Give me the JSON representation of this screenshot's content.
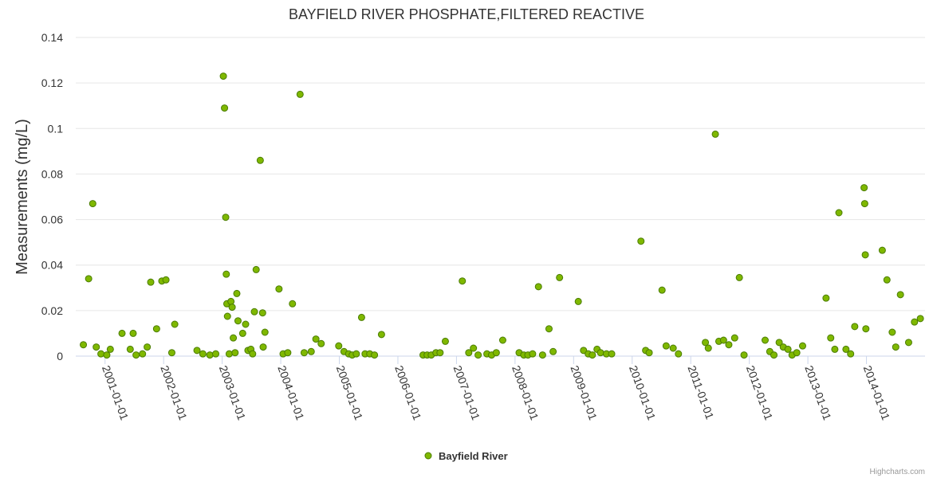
{
  "chart_data": {
    "type": "scatter",
    "title": "BAYFIELD RIVER PHOSPHATE,FILTERED REACTIVE",
    "xlabel": "",
    "ylabel": "Measurements (mg/L)",
    "xlim": [
      2000.5,
      2015.0
    ],
    "ylim": [
      0,
      0.14
    ],
    "yticks": [
      0,
      0.02,
      0.04,
      0.06,
      0.08,
      0.1,
      0.12,
      0.14
    ],
    "ytick_labels": [
      "0",
      "0.02",
      "0.04",
      "0.06",
      "0.08",
      "0.1",
      "0.12",
      "0.14"
    ],
    "xticks": [
      2001,
      2002,
      2003,
      2004,
      2005,
      2006,
      2007,
      2008,
      2009,
      2010,
      2011,
      2012,
      2013,
      2014
    ],
    "xtick_labels": [
      "2001-01-01",
      "2002-01-01",
      "2003-01-01",
      "2004-01-01",
      "2005-01-01",
      "2006-01-01",
      "2007-01-01",
      "2008-01-01",
      "2009-01-01",
      "2010-01-01",
      "2011-01-01",
      "2012-01-01",
      "2013-01-01",
      "2014-01-01"
    ],
    "grid": true,
    "legend_position": "bottom-center",
    "series": [
      {
        "name": "Bayfield River",
        "color": "#7fb800",
        "border_color": "#4a7c00",
        "points": [
          [
            2000.63,
            0.005
          ],
          [
            2000.72,
            0.034
          ],
          [
            2000.79,
            0.067
          ],
          [
            2000.85,
            0.004
          ],
          [
            2000.93,
            0.001
          ],
          [
            2001.03,
            0.0005
          ],
          [
            2001.09,
            0.003
          ],
          [
            2001.29,
            0.01
          ],
          [
            2001.43,
            0.003
          ],
          [
            2001.48,
            0.01
          ],
          [
            2001.53,
            0.0005
          ],
          [
            2001.64,
            0.001
          ],
          [
            2001.72,
            0.004
          ],
          [
            2001.78,
            0.0325
          ],
          [
            2001.88,
            0.012
          ],
          [
            2001.97,
            0.033
          ],
          [
            2002.04,
            0.0335
          ],
          [
            2002.14,
            0.0015
          ],
          [
            2002.19,
            0.014
          ],
          [
            2002.57,
            0.0025
          ],
          [
            2002.67,
            0.001
          ],
          [
            2002.79,
            0.0005
          ],
          [
            2002.89,
            0.001
          ],
          [
            2003.02,
            0.123
          ],
          [
            2003.04,
            0.109
          ],
          [
            2003.06,
            0.061
          ],
          [
            2003.07,
            0.036
          ],
          [
            2003.08,
            0.023
          ],
          [
            2003.09,
            0.0175
          ],
          [
            2003.12,
            0.001
          ],
          [
            2003.15,
            0.024
          ],
          [
            2003.17,
            0.0215
          ],
          [
            2003.19,
            0.008
          ],
          [
            2003.22,
            0.0015
          ],
          [
            2003.25,
            0.0275
          ],
          [
            2003.27,
            0.0155
          ],
          [
            2003.35,
            0.01
          ],
          [
            2003.4,
            0.014
          ],
          [
            2003.44,
            0.0025
          ],
          [
            2003.49,
            0.003
          ],
          [
            2003.52,
            0.001
          ],
          [
            2003.55,
            0.0195
          ],
          [
            2003.58,
            0.038
          ],
          [
            2003.65,
            0.086
          ],
          [
            2003.69,
            0.019
          ],
          [
            2003.7,
            0.004
          ],
          [
            2003.73,
            0.0105
          ],
          [
            2003.97,
            0.0295
          ],
          [
            2004.04,
            0.001
          ],
          [
            2004.12,
            0.0015
          ],
          [
            2004.2,
            0.023
          ],
          [
            2004.33,
            0.115
          ],
          [
            2004.4,
            0.0015
          ],
          [
            2004.52,
            0.002
          ],
          [
            2004.6,
            0.0075
          ],
          [
            2004.69,
            0.0055
          ],
          [
            2004.99,
            0.0045
          ],
          [
            2005.08,
            0.002
          ],
          [
            2005.16,
            0.001
          ],
          [
            2005.22,
            0.0005
          ],
          [
            2005.29,
            0.001
          ],
          [
            2005.38,
            0.017
          ],
          [
            2005.44,
            0.001
          ],
          [
            2005.52,
            0.001
          ],
          [
            2005.6,
            0.0005
          ],
          [
            2005.72,
            0.0095
          ],
          [
            2006.43,
            0.0005
          ],
          [
            2006.5,
            0.0005
          ],
          [
            2006.57,
            0.0005
          ],
          [
            2006.65,
            0.0015
          ],
          [
            2006.72,
            0.0015
          ],
          [
            2006.81,
            0.0065
          ],
          [
            2007.1,
            0.033
          ],
          [
            2007.21,
            0.0015
          ],
          [
            2007.29,
            0.0035
          ],
          [
            2007.37,
            0.0005
          ],
          [
            2007.52,
            0.001
          ],
          [
            2007.6,
            0.0005
          ],
          [
            2007.68,
            0.0015
          ],
          [
            2007.79,
            0.007
          ],
          [
            2008.07,
            0.0015
          ],
          [
            2008.15,
            0.0005
          ],
          [
            2008.22,
            0.0005
          ],
          [
            2008.3,
            0.001
          ],
          [
            2008.4,
            0.0305
          ],
          [
            2008.47,
            0.0005
          ],
          [
            2008.58,
            0.012
          ],
          [
            2008.65,
            0.002
          ],
          [
            2008.76,
            0.0345
          ],
          [
            2009.08,
            0.024
          ],
          [
            2009.17,
            0.0025
          ],
          [
            2009.25,
            0.001
          ],
          [
            2009.32,
            0.0005
          ],
          [
            2009.4,
            0.003
          ],
          [
            2009.46,
            0.0015
          ],
          [
            2009.56,
            0.001
          ],
          [
            2009.65,
            0.001
          ],
          [
            2010.15,
            0.0505
          ],
          [
            2010.23,
            0.0025
          ],
          [
            2010.29,
            0.0015
          ],
          [
            2010.51,
            0.029
          ],
          [
            2010.58,
            0.0045
          ],
          [
            2010.7,
            0.0035
          ],
          [
            2010.79,
            0.001
          ],
          [
            2011.25,
            0.006
          ],
          [
            2011.3,
            0.0035
          ],
          [
            2011.42,
            0.0975
          ],
          [
            2011.48,
            0.0065
          ],
          [
            2011.56,
            0.007
          ],
          [
            2011.65,
            0.005
          ],
          [
            2011.75,
            0.008
          ],
          [
            2011.83,
            0.0345
          ],
          [
            2011.91,
            0.0005
          ],
          [
            2012.27,
            0.007
          ],
          [
            2012.35,
            0.002
          ],
          [
            2012.42,
            0.0005
          ],
          [
            2012.51,
            0.006
          ],
          [
            2012.58,
            0.004
          ],
          [
            2012.66,
            0.003
          ],
          [
            2012.73,
            0.0005
          ],
          [
            2012.81,
            0.0015
          ],
          [
            2012.91,
            0.0045
          ],
          [
            2013.31,
            0.0255
          ],
          [
            2013.39,
            0.008
          ],
          [
            2013.46,
            0.003
          ],
          [
            2013.53,
            0.063
          ],
          [
            2013.65,
            0.003
          ],
          [
            2013.73,
            0.001
          ],
          [
            2013.8,
            0.013
          ],
          [
            2013.96,
            0.074
          ],
          [
            2013.97,
            0.067
          ],
          [
            2013.98,
            0.0445
          ],
          [
            2013.99,
            0.012
          ],
          [
            2014.27,
            0.0465
          ],
          [
            2014.35,
            0.0335
          ],
          [
            2014.44,
            0.0105
          ],
          [
            2014.5,
            0.004
          ],
          [
            2014.58,
            0.027
          ],
          [
            2014.72,
            0.006
          ],
          [
            2014.82,
            0.015
          ],
          [
            2014.92,
            0.0165
          ]
        ]
      }
    ]
  },
  "credits": "Highcharts.com"
}
